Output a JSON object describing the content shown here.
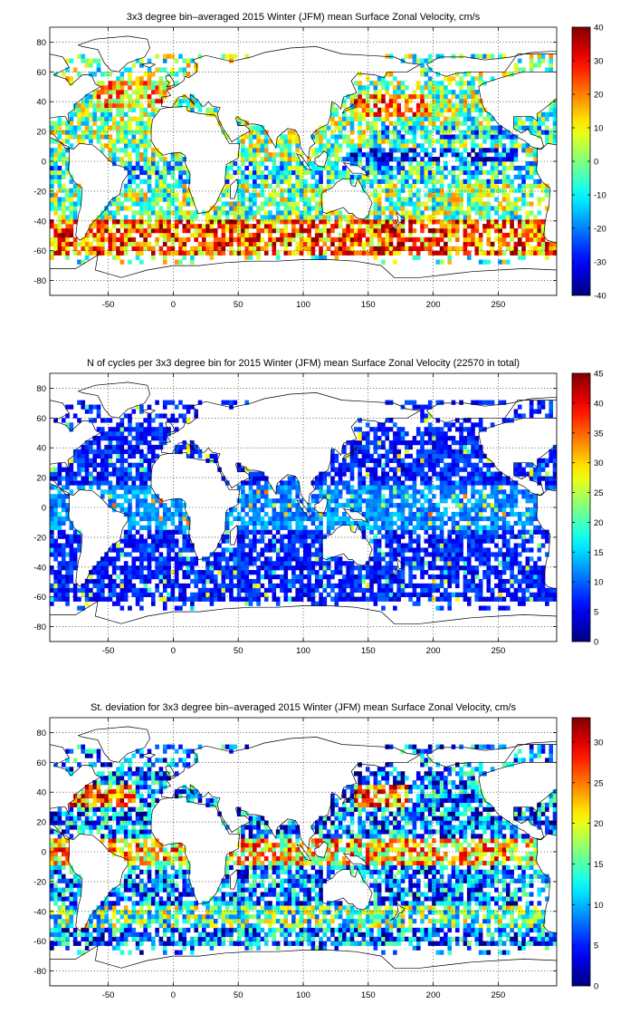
{
  "colors": {
    "colormap": "jet",
    "background": "#ffffff",
    "coast": "#000000"
  },
  "chart_data": [
    {
      "type": "heatmap",
      "title": "3x3 degree bin–averaged 2015 Winter (JFM) mean Surface Zonal Velocity, cm/s",
      "xlim": [
        -95,
        295
      ],
      "ylim": [
        -90,
        90
      ],
      "xticks": [
        -50,
        0,
        50,
        100,
        150,
        200,
        250
      ],
      "yticks": [
        -80,
        -60,
        -40,
        -20,
        0,
        20,
        40,
        60,
        80
      ],
      "grid": true,
      "colorbar": {
        "min": -40,
        "max": 40,
        "ticks": [
          -40,
          -30,
          -20,
          -10,
          0,
          10,
          20,
          30,
          40
        ]
      },
      "bin_size_deg": 3,
      "variable": "u"
    },
    {
      "type": "heatmap",
      "title": "N of cycles per 3x3 degree bin for 2015 Winter (JFM) mean Surface Zonal Velocity (22570 in total)",
      "xlim": [
        -95,
        295
      ],
      "ylim": [
        -90,
        90
      ],
      "xticks": [
        -50,
        0,
        50,
        100,
        150,
        200,
        250
      ],
      "yticks": [
        -80,
        -60,
        -40,
        -20,
        0,
        20,
        40,
        60,
        80
      ],
      "grid": true,
      "colorbar": {
        "min": 0,
        "max": 45,
        "ticks": [
          0,
          5,
          10,
          15,
          20,
          25,
          30,
          35,
          40,
          45
        ]
      },
      "bin_size_deg": 3,
      "variable": "n"
    },
    {
      "type": "heatmap",
      "title": "St. deviation for 3x3 degree bin–averaged 2015 Winter (JFM) mean Surface Zonal Velocity, cm/s",
      "xlim": [
        -95,
        295
      ],
      "ylim": [
        -90,
        90
      ],
      "xticks": [
        -50,
        0,
        50,
        100,
        150,
        200,
        250
      ],
      "yticks": [
        -80,
        -60,
        -40,
        -20,
        0,
        20,
        40,
        60,
        80
      ],
      "grid": true,
      "colorbar": {
        "min": 0,
        "max": 33,
        "ticks": [
          0,
          5,
          10,
          15,
          20,
          25,
          30
        ]
      },
      "bin_size_deg": 3,
      "variable": "sd"
    }
  ]
}
